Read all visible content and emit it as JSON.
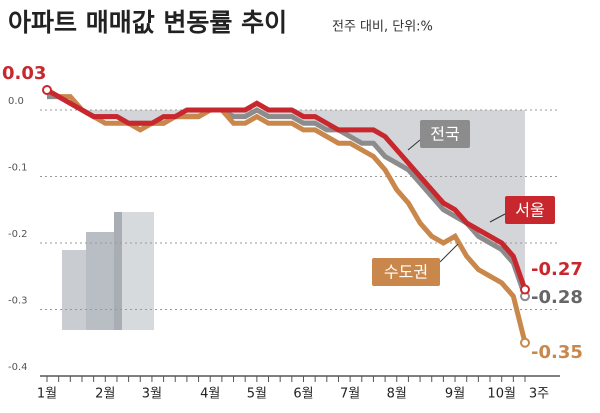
{
  "chart_data": {
    "type": "line",
    "title": "아파트 매매값 변동률 추이",
    "subtitle": "전주 대비, 단위:%",
    "categories": [
      "1월",
      null,
      null,
      null,
      null,
      "2월",
      null,
      null,
      null,
      "3월",
      null,
      null,
      null,
      null,
      "4월",
      null,
      null,
      null,
      "5월",
      null,
      null,
      null,
      "6월",
      null,
      null,
      null,
      "7월",
      null,
      null,
      null,
      "8월",
      null,
      null,
      null,
      null,
      "9월",
      null,
      null,
      null,
      "10월",
      null,
      "3주"
    ],
    "series": [
      {
        "name": "전국",
        "color": "#8c8c8c",
        "values": [
          0.02,
          0.02,
          0.01,
          0.0,
          -0.01,
          -0.01,
          -0.01,
          -0.02,
          -0.02,
          -0.02,
          -0.02,
          -0.01,
          -0.01,
          -0.01,
          0.0,
          0.0,
          -0.01,
          -0.01,
          0.0,
          -0.01,
          -0.01,
          -0.01,
          -0.02,
          -0.02,
          -0.03,
          -0.03,
          -0.04,
          -0.05,
          -0.05,
          -0.07,
          -0.08,
          -0.09,
          -0.11,
          -0.13,
          -0.15,
          -0.16,
          -0.17,
          -0.19,
          -0.2,
          -0.21,
          -0.23,
          -0.28
        ]
      },
      {
        "name": "수도권",
        "color": "#c9874c",
        "values": [
          0.03,
          0.02,
          0.02,
          0.0,
          -0.01,
          -0.02,
          -0.02,
          -0.02,
          -0.03,
          -0.02,
          -0.02,
          -0.01,
          -0.01,
          -0.01,
          0.0,
          0.0,
          -0.02,
          -0.02,
          -0.01,
          -0.02,
          -0.02,
          -0.02,
          -0.03,
          -0.03,
          -0.04,
          -0.05,
          -0.05,
          -0.06,
          -0.07,
          -0.09,
          -0.12,
          -0.14,
          -0.17,
          -0.19,
          -0.2,
          -0.19,
          -0.22,
          -0.24,
          -0.25,
          -0.26,
          -0.28,
          -0.35
        ]
      },
      {
        "name": "서울",
        "color": "#c8282d",
        "values": [
          0.03,
          0.02,
          0.01,
          0.0,
          -0.01,
          -0.01,
          -0.01,
          -0.02,
          -0.02,
          -0.02,
          -0.01,
          -0.01,
          0.0,
          0.0,
          0.0,
          0.0,
          0.0,
          0.0,
          0.01,
          0.0,
          0.0,
          0.0,
          -0.01,
          -0.01,
          -0.02,
          -0.03,
          -0.03,
          -0.03,
          -0.03,
          -0.04,
          -0.06,
          -0.08,
          -0.1,
          -0.12,
          -0.14,
          -0.15,
          -0.17,
          -0.18,
          -0.19,
          -0.2,
          -0.22,
          -0.27
        ]
      }
    ],
    "ylim": [
      -0.4,
      0.03
    ],
    "yticks": [
      {
        "value": 0,
        "label": "0.0"
      },
      -0.1,
      -0.2,
      -0.3,
      -0.4
    ],
    "grid": true
  }
}
